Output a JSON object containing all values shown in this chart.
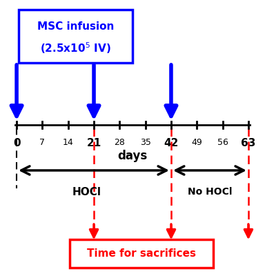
{
  "timeline_days": [
    0,
    7,
    14,
    21,
    28,
    35,
    42,
    49,
    56,
    63
  ],
  "bold_days": [
    0,
    21,
    42,
    63
  ],
  "msc_days": [
    0,
    21,
    42
  ],
  "sacrifice_days": [
    21,
    42,
    63
  ],
  "blue_color": "#0000ff",
  "red_color": "#ff0000",
  "black_color": "#000000",
  "days_label": "days",
  "hocl_label": "HOCl",
  "no_hocl_label": "No HOCl",
  "sacrifice_label": "Time for sacrifices",
  "msc_line1": "MSC infusion",
  "msc_line2": "(2.5x10$^5$ IV)",
  "background_color": "#ffffff"
}
